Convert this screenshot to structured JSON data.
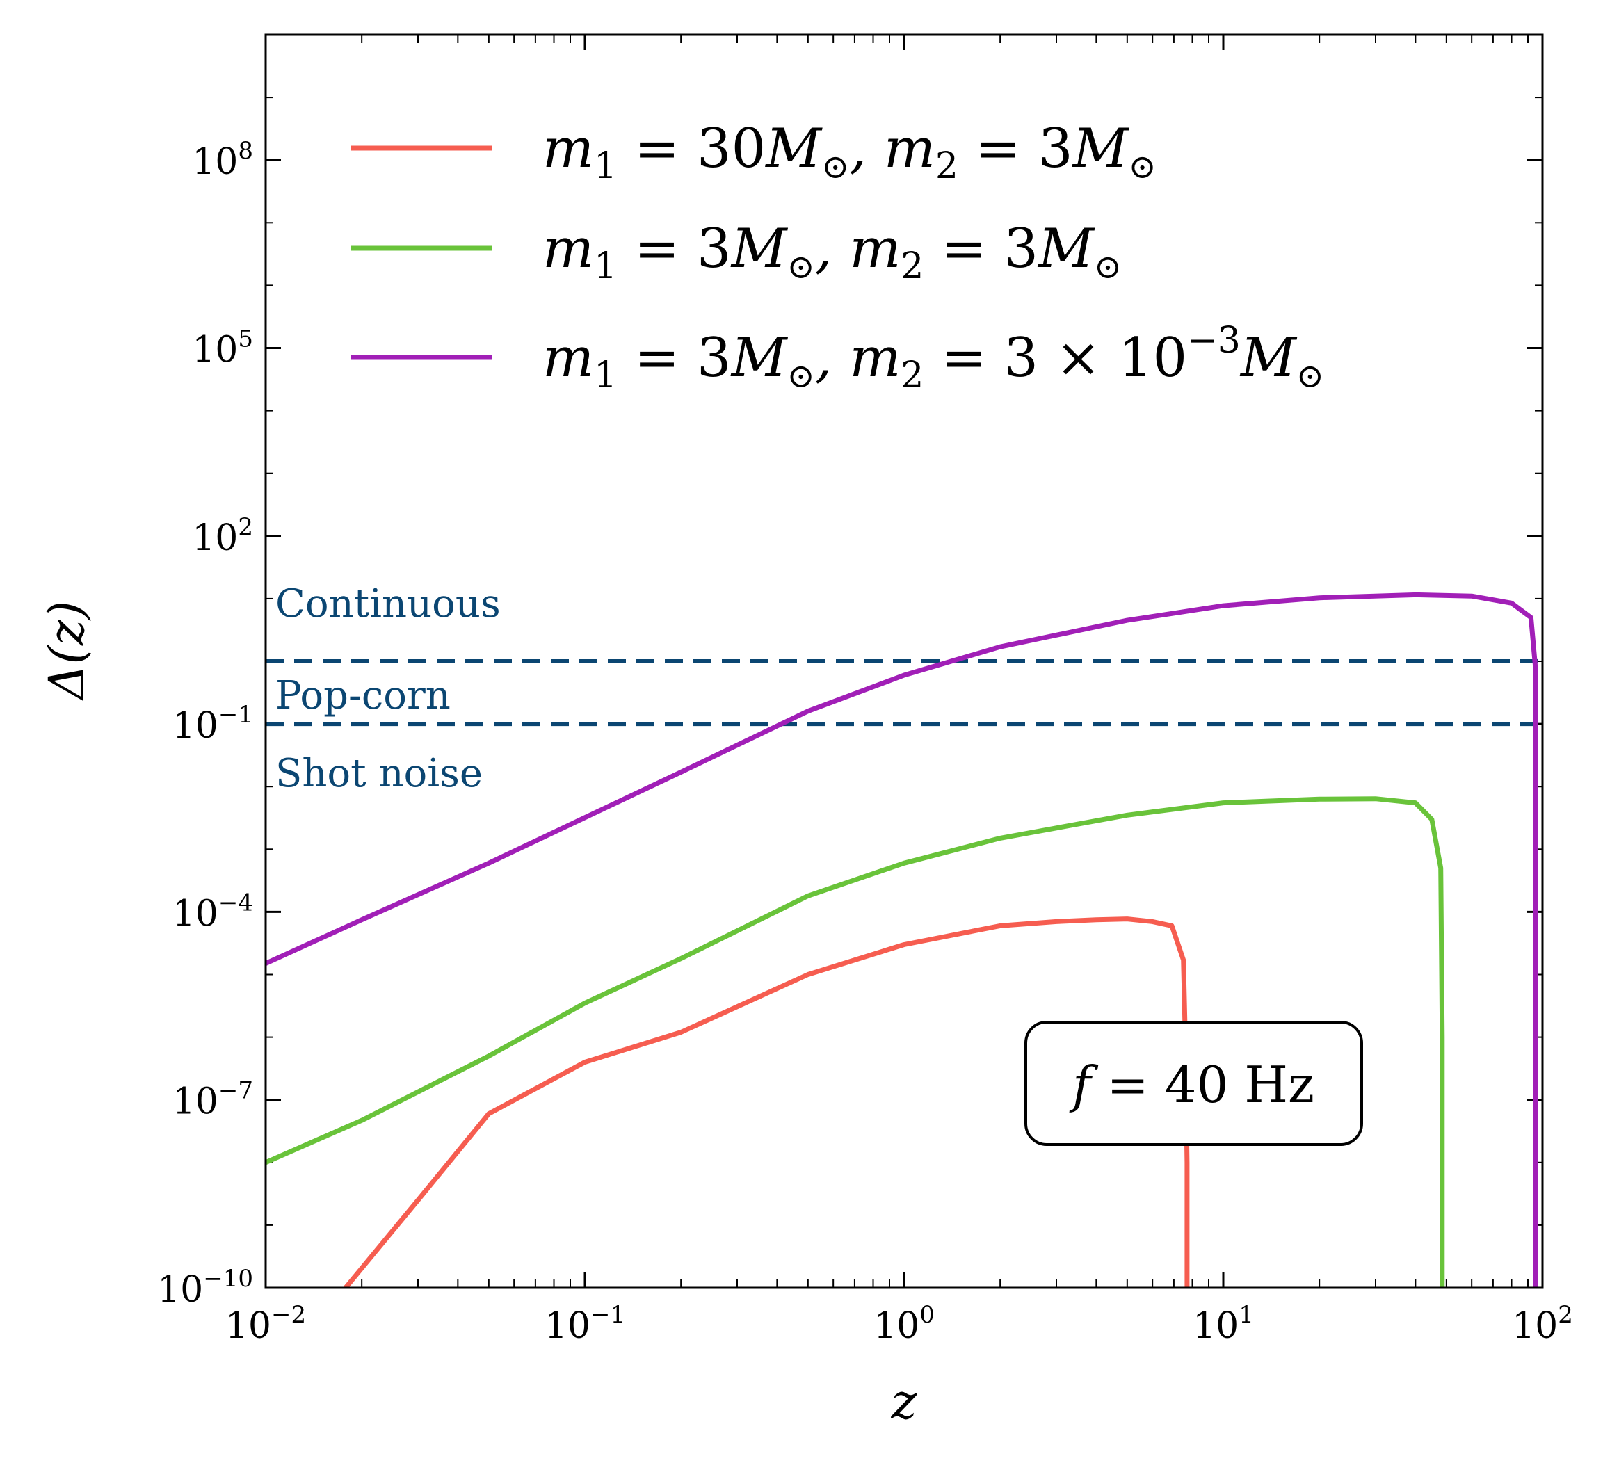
{
  "chart_data": {
    "type": "line",
    "xlabel": "z",
    "ylabel": "Δ(z)",
    "xscale": "log",
    "yscale": "log",
    "xlim": [
      0.01,
      100
    ],
    "ylim": [
      1e-10,
      10000000000.0
    ],
    "x_ticks": [
      {
        "base": "10",
        "exp": "−2"
      },
      {
        "base": "10",
        "exp": "−1"
      },
      {
        "base": "10",
        "exp": "0"
      },
      {
        "base": "10",
        "exp": "1"
      },
      {
        "base": "10",
        "exp": "2"
      }
    ],
    "y_ticks": [
      {
        "base": "10",
        "exp": "−10"
      },
      {
        "base": "10",
        "exp": "−7"
      },
      {
        "base": "10",
        "exp": "−4"
      },
      {
        "base": "10",
        "exp": "−1"
      },
      {
        "base": "10",
        "exp": "2"
      },
      {
        "base": "10",
        "exp": "5"
      },
      {
        "base": "10",
        "exp": "8"
      }
    ],
    "legend_position": "top-left",
    "series": [
      {
        "name": "m1 = 30M⊙, m2 = 3M⊙",
        "legend_parts": {
          "m1": "30",
          "m2": "3",
          "m2_exp": ""
        },
        "color": "#f65d50",
        "x": [
          0.0178,
          0.03,
          0.05,
          0.1,
          0.2,
          0.5,
          1,
          2,
          3,
          4,
          5,
          6,
          6.9,
          7.5,
          7.6,
          7.7,
          7.7
        ],
        "y": [
          1e-10,
          2.5e-09,
          6e-08,
          4e-07,
          1.2e-06,
          1e-05,
          3e-05,
          6e-05,
          7e-05,
          7.5e-05,
          7.7e-05,
          7e-05,
          6e-05,
          1.7e-05,
          1e-06,
          1e-08,
          1e-10
        ]
      },
      {
        "name": "m1 = 3M⊙, m2 = 3M⊙",
        "legend_parts": {
          "m1": "3",
          "m2": "3",
          "m2_exp": ""
        },
        "color": "#69c33a",
        "x": [
          0.01,
          0.02,
          0.05,
          0.1,
          0.2,
          0.5,
          1,
          2,
          5,
          10,
          20,
          30,
          40,
          45,
          48,
          48.5,
          48.5
        ],
        "y": [
          1e-08,
          4.7e-08,
          5e-07,
          3.5e-06,
          1.8e-05,
          0.00018,
          0.0006,
          0.0015,
          0.0035,
          0.0055,
          0.0063,
          0.0064,
          0.0055,
          0.003,
          0.0005,
          1e-06,
          1e-10
        ]
      },
      {
        "name": "m1 = 3M⊙, m2 = 3 × 10⁻³M⊙",
        "legend_parts": {
          "m1": "3",
          "m2": "3 × 10",
          "m2_exp": "−3"
        },
        "color": "#a11fb7",
        "x": [
          0.01,
          0.02,
          0.05,
          0.1,
          0.2,
          0.5,
          1,
          2,
          5,
          10,
          20,
          40,
          60,
          80,
          92,
          95,
          95
        ],
        "y": [
          1.5e-05,
          7.5e-05,
          0.0006,
          0.0032,
          0.017,
          0.16,
          0.6,
          1.7,
          4.5,
          7.7,
          10.3,
          11.5,
          11,
          8.5,
          5,
          0.8,
          1e-10
        ]
      }
    ],
    "reference_lines": [
      {
        "y": 0.1,
        "color": "#0b4672",
        "style": "dashed"
      },
      {
        "y": 1.0,
        "color": "#0b4672",
        "style": "dashed"
      }
    ],
    "region_labels": [
      "Continuous",
      "Pop-corn",
      "Shot noise"
    ],
    "annotation": {
      "lhs": "f",
      "rhs": " = 40 Hz"
    }
  }
}
